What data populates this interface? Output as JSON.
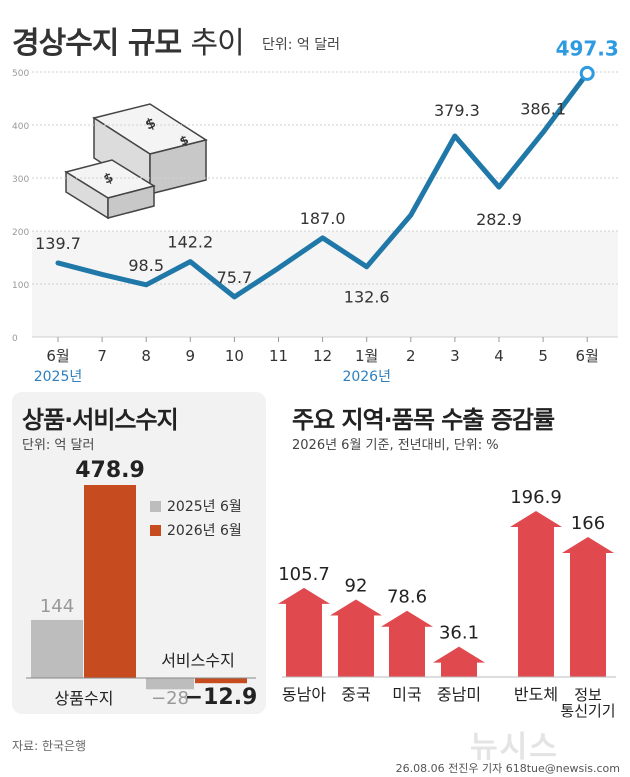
{
  "title": {
    "main": "경상수지 규모",
    "sub": "추이",
    "unit": "단위: 억 달러"
  },
  "chart_data": [
    {
      "type": "line",
      "title": "경상수지 규모 추이",
      "unit": "단위: 억 달러",
      "x": [
        "6월",
        "7",
        "8",
        "9",
        "10",
        "11",
        "12",
        "1월",
        "2",
        "3",
        "4",
        "5",
        "6월"
      ],
      "year_labels": [
        {
          "x": "6월",
          "label": "2025년"
        },
        {
          "x": "1월",
          "label": "2026년"
        }
      ],
      "series": [
        {
          "values": [
            139.7,
            118,
            98.5,
            142.2,
            75.7,
            130,
            187.0,
            132.6,
            230,
            379.3,
            282.9,
            386.1,
            497.3
          ]
        }
      ],
      "labeled_points": [
        {
          "index": 0,
          "label": "139.7"
        },
        {
          "index": 2,
          "label": "98.5"
        },
        {
          "index": 3,
          "label": "142.2"
        },
        {
          "index": 4,
          "label": "75.7"
        },
        {
          "index": 6,
          "label": "187.0"
        },
        {
          "index": 7,
          "label": "132.6"
        },
        {
          "index": 9,
          "label": "379.3"
        },
        {
          "index": 10,
          "label": "282.9"
        },
        {
          "index": 11,
          "label": "386.1"
        },
        {
          "index": 12,
          "label": "497.3"
        }
      ],
      "yticks": [
        0,
        100,
        200,
        300,
        400,
        500
      ],
      "ylim": [
        0,
        500
      ],
      "grid": true,
      "line_color": "#1f78a8",
      "highlight_color": "#2e9be0"
    },
    {
      "type": "bar",
      "title": "상품·서비스수지",
      "unit": "단위: 억 달러",
      "categories": [
        "상품수지",
        "서비스수지"
      ],
      "series": [
        {
          "name": "2025년 6월",
          "values": [
            144,
            -28
          ],
          "labels": [
            "144",
            "−28"
          ],
          "color": "#bdbdbd"
        },
        {
          "name": "2026년 6월",
          "values": [
            478.9,
            -12.9
          ],
          "labels": [
            "478.9",
            "−12.9"
          ],
          "color": "#c64b1f"
        }
      ],
      "legend": "top-right"
    },
    {
      "type": "bar",
      "title": "주요 지역·품목 수출 증감률",
      "subtitle": "2026년 6월 기준, 전년대비, 단위: %",
      "categories": [
        "동남아",
        "중국",
        "미국",
        "중남미",
        "반도체",
        "정보\n통신기기"
      ],
      "values": [
        105.7,
        92,
        78.6,
        36.1,
        196.9,
        166
      ],
      "labels": [
        "105.7",
        "92",
        "78.6",
        "36.1",
        "196.9",
        "166"
      ],
      "color": "#e04a4f"
    }
  ],
  "footer": {
    "source": "자료: 한국은행",
    "credit": "26.08.06 전진우 기자 618tue@newsis.com",
    "watermark": "뉴시스"
  }
}
